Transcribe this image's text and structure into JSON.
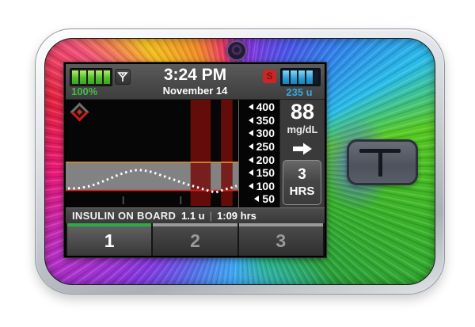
{
  "device": {
    "type": "insulin pump",
    "skin": "rainbow swirl decal",
    "side_button_logo": "T"
  },
  "status_bar": {
    "battery": {
      "percent": "100%",
      "bars": 5
    },
    "signal_icon": "antenna-icon",
    "time": "3:24 PM",
    "date": "November 14",
    "status_badge": "S",
    "cartridge": {
      "units": "235 u",
      "bars": 4
    }
  },
  "cgm_panel": {
    "glucose_value": "88",
    "glucose_units": "mg/dL",
    "trend": "steady",
    "range_button": {
      "value": "3",
      "unit": "HRS"
    }
  },
  "iob_bar": {
    "label": "INSULIN ON BOARD",
    "amount": "1.1 u",
    "separator": "|",
    "duration": "1:09 hrs"
  },
  "profile_buttons": [
    {
      "label": "1",
      "active": true
    },
    {
      "label": "2",
      "active": false
    },
    {
      "label": "3",
      "active": false
    }
  ],
  "colors": {
    "active_tab_green": "#2faa45",
    "battery_green": "#3fbf49",
    "cartridge_blue": "#3aa5dc",
    "status_badge_red": "#cc2525",
    "in_range_band_gray": "#828282",
    "high_line_orange": "#e09030",
    "low_line_red": "#d42020",
    "suspend_bar_red": "#760e0a"
  },
  "chart_data": {
    "type": "line",
    "title": "CGM glucose trend, last 3 hours",
    "ylabel": "mg/dL",
    "yticks": [
      400,
      350,
      300,
      250,
      200,
      150,
      100,
      50
    ],
    "ylim": [
      40,
      415
    ],
    "x_span_hours": 3,
    "x_tick_every_hours": 1,
    "target_high": 180,
    "target_low": 70,
    "current_value": 88,
    "style": "dotted",
    "values_mgdl": [
      78,
      78,
      79,
      82,
      86,
      92,
      99,
      107,
      115,
      124,
      132,
      139,
      145,
      149,
      150,
      148,
      144,
      138,
      131,
      124,
      117,
      110,
      103,
      96,
      90,
      84,
      78,
      72,
      66,
      63,
      70,
      76,
      81,
      88
    ],
    "suspend_periods_hours_ago": [
      [
        -0.83,
        -0.48
      ],
      [
        -0.3,
        -0.1
      ]
    ]
  }
}
